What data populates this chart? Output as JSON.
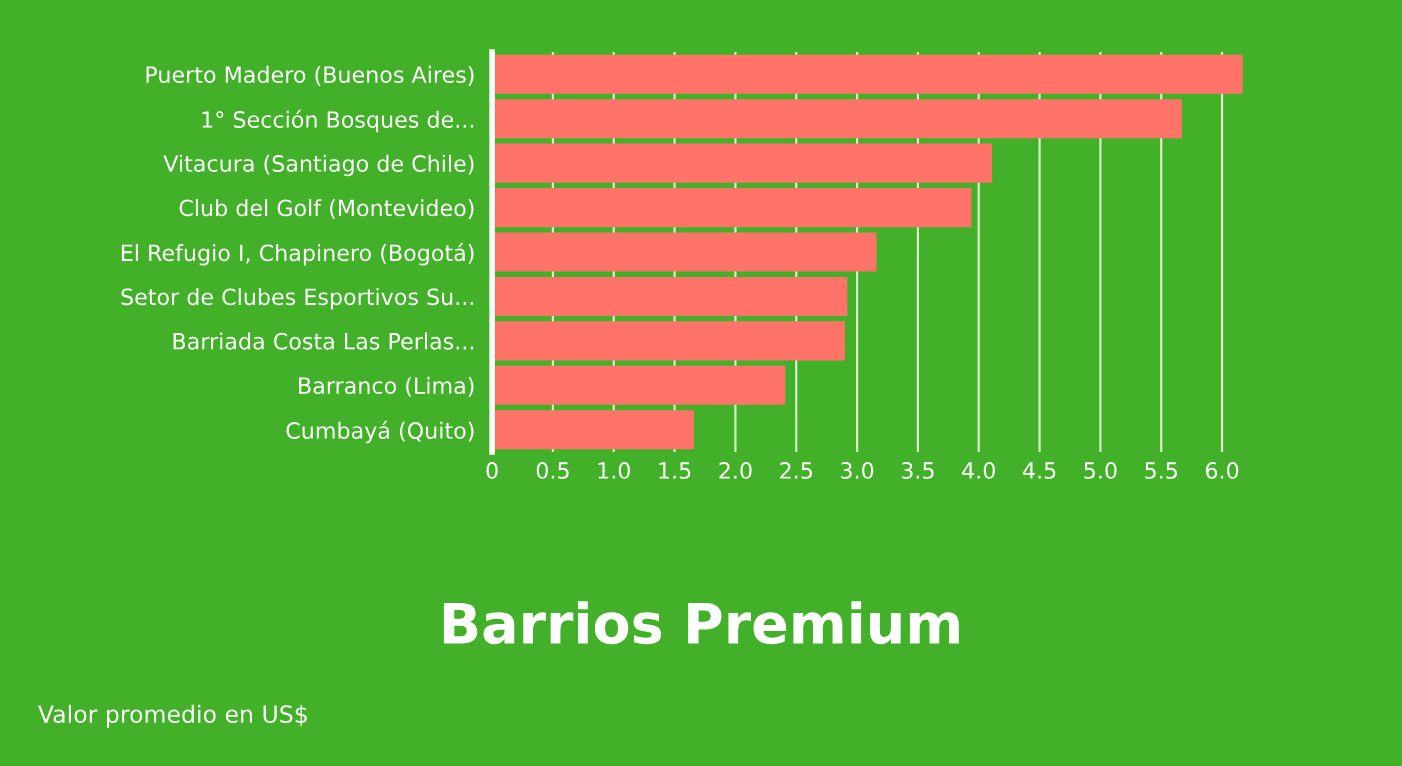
{
  "chart_data": {
    "type": "bar",
    "orientation": "horizontal",
    "title": "Barrios Premium",
    "categories": [
      "Puerto Madero (Buenos Aires)",
      "1° Sección Bosques de...",
      "Vitacura (Santiago de Chile)",
      "Club del Golf (Montevideo)",
      "El Refugio I, Chapinero (Bogotá)",
      "Setor de Clubes Esportivos Su...",
      "Barriada Costa Las Perlas...",
      "Barranco (Lima)",
      "Cumbayá (Quito)"
    ],
    "values": [
      6.17,
      5.67,
      4.11,
      3.94,
      3.16,
      2.92,
      2.9,
      2.41,
      1.66
    ],
    "color": "#ff7369",
    "xlim": [
      0,
      6.2
    ],
    "xticks": [
      0,
      0.5,
      {
        "value": 1,
        "label": "1.0"
      },
      1.5,
      {
        "value": 2,
        "label": "2.0"
      },
      2.5,
      {
        "value": 3,
        "label": "3.0"
      },
      3.5,
      {
        "value": 4,
        "label": "4.0"
      },
      4.5,
      {
        "value": 5,
        "label": "5.0"
      },
      5.5,
      {
        "value": 6,
        "label": "6.0"
      }
    ],
    "grid": "x",
    "annotations": [
      "Valor promedio en US$"
    ]
  }
}
